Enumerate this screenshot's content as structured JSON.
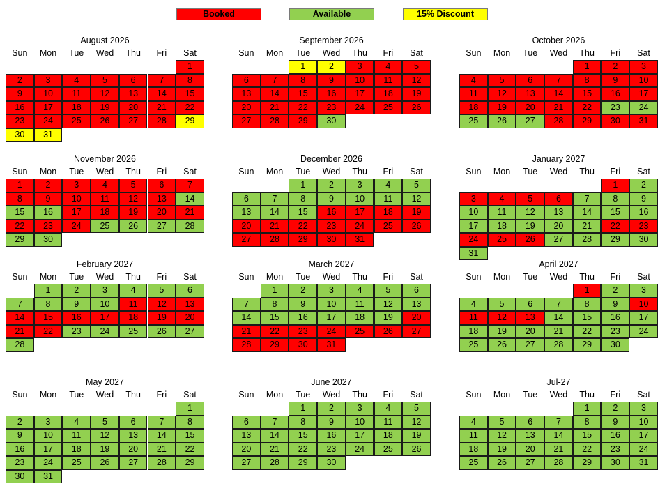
{
  "legend": [
    {
      "label": "Booked",
      "status": "booked"
    },
    {
      "label": "Available",
      "status": "available"
    },
    {
      "label": "15% Discount",
      "status": "discount"
    }
  ],
  "colors": {
    "booked": "#ff0000",
    "available": "#92d050",
    "discount": "#ffff00"
  },
  "weekdays": [
    "Sun",
    "Mon",
    "Tue",
    "Wed",
    "Thu",
    "Fri",
    "Sat"
  ],
  "months": [
    {
      "title": "August 2026",
      "start": 6,
      "days": 31,
      "booked": [
        1,
        2,
        3,
        4,
        5,
        6,
        7,
        8,
        9,
        10,
        11,
        12,
        13,
        14,
        15,
        16,
        17,
        18,
        19,
        20,
        21,
        22,
        23,
        24,
        25,
        26,
        27,
        28
      ],
      "discount": [
        29,
        30,
        31
      ]
    },
    {
      "title": "September 2026",
      "start": 2,
      "days": 30,
      "booked": [
        3,
        4,
        5,
        6,
        7,
        8,
        9,
        10,
        11,
        12,
        13,
        14,
        15,
        16,
        17,
        18,
        19,
        20,
        21,
        22,
        23,
        24,
        25,
        26,
        27,
        28,
        29
      ],
      "discount": [
        1,
        2
      ]
    },
    {
      "title": "October 2026",
      "start": 4,
      "days": 31,
      "booked": [
        1,
        2,
        3,
        4,
        5,
        6,
        7,
        8,
        9,
        10,
        11,
        12,
        13,
        14,
        15,
        16,
        17,
        18,
        19,
        20,
        21,
        22,
        28,
        29,
        30,
        31
      ],
      "discount": []
    },
    {
      "title": "November 2026",
      "start": 0,
      "days": 30,
      "booked": [
        1,
        2,
        3,
        4,
        5,
        6,
        7,
        8,
        9,
        10,
        11,
        12,
        13,
        17,
        18,
        19,
        20,
        21,
        22,
        23,
        24
      ],
      "discount": []
    },
    {
      "title": "December 2026",
      "start": 2,
      "days": 31,
      "booked": [
        16,
        17,
        18,
        19,
        20,
        21,
        22,
        23,
        24,
        25,
        26,
        27,
        28,
        29,
        30,
        31
      ],
      "discount": []
    },
    {
      "title": "January 2027",
      "start": 5,
      "days": 31,
      "booked": [
        1,
        3,
        4,
        5,
        6,
        22,
        23,
        24,
        25,
        26
      ],
      "discount": []
    },
    {
      "title": "February 2027",
      "start": 1,
      "days": 28,
      "booked": [
        11,
        12,
        13,
        14,
        15,
        16,
        17,
        18,
        19,
        20,
        21,
        22
      ],
      "discount": []
    },
    {
      "title": "March 2027",
      "start": 1,
      "days": 31,
      "booked": [
        20,
        21,
        22,
        23,
        24,
        25,
        26,
        27,
        28,
        29,
        30,
        31
      ],
      "discount": []
    },
    {
      "title": "April 2027",
      "start": 4,
      "days": 30,
      "booked": [
        1,
        10,
        11,
        12,
        13
      ],
      "discount": []
    },
    {
      "title": "May 2027",
      "start": 6,
      "days": 31,
      "booked": [],
      "discount": []
    },
    {
      "title": "June 2027",
      "start": 2,
      "days": 30,
      "booked": [],
      "discount": []
    },
    {
      "title": "Jul-27",
      "start": 4,
      "days": 31,
      "booked": [],
      "discount": []
    }
  ]
}
